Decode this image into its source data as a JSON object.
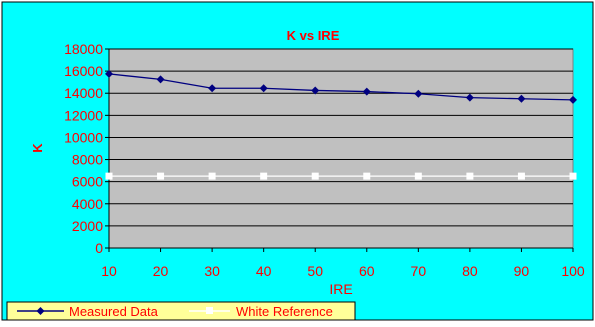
{
  "chart_data": {
    "type": "line",
    "title": "K vs IRE",
    "xlabel": "IRE",
    "ylabel": "K",
    "x": [
      10,
      20,
      30,
      40,
      50,
      60,
      70,
      80,
      90,
      100
    ],
    "ylim": [
      0,
      18000
    ],
    "yticks": [
      0,
      2000,
      4000,
      6000,
      8000,
      10000,
      12000,
      14000,
      16000,
      18000
    ],
    "grid": true,
    "legend_position": "bottom-left",
    "series": [
      {
        "name": "Measured Data",
        "color": "#000080",
        "marker": "diamond",
        "values": [
          15750,
          15250,
          14450,
          14450,
          14250,
          14150,
          13950,
          13600,
          13500,
          13400
        ]
      },
      {
        "name": "White Reference",
        "color": "#ffffff",
        "marker": "square",
        "values": [
          6500,
          6500,
          6500,
          6500,
          6500,
          6500,
          6500,
          6500,
          6500,
          6500
        ]
      }
    ]
  },
  "colors": {
    "page_background": "#00FFFF",
    "plot_background": "#C0C0C0",
    "text": "#FF0000",
    "axis": "#000000"
  }
}
